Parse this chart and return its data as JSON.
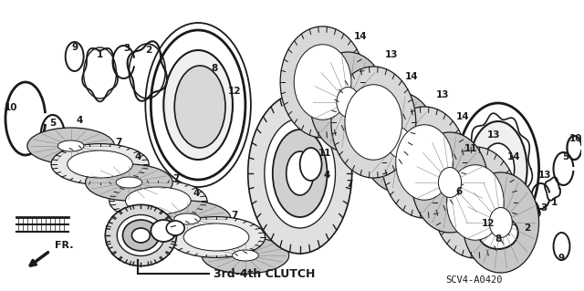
{
  "title": "3rd-4th CLUTCH",
  "code": "SCV4-A0420",
  "bg_color": "#ffffff",
  "lc": "#1a1a1a",
  "fig_w": 6.4,
  "fig_h": 3.19,
  "dpi": 100
}
